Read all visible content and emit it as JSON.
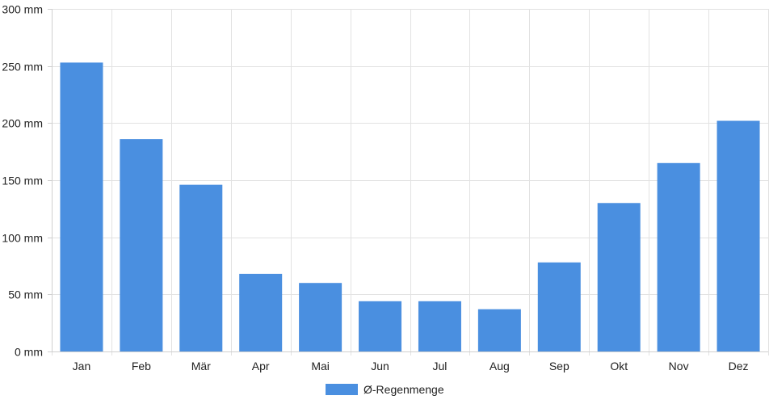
{
  "colors": {
    "bar": "#4a8fe0",
    "grid": "#e2e2e2",
    "axis": "#cfcfcf",
    "text": "#222222"
  },
  "legend": {
    "label": "Ø-Regenmenge"
  },
  "chart_data": {
    "type": "bar",
    "categories": [
      "Jan",
      "Feb",
      "Mär",
      "Apr",
      "Mai",
      "Jun",
      "Jul",
      "Aug",
      "Sep",
      "Okt",
      "Nov",
      "Dez"
    ],
    "series": [
      {
        "name": "Ø-Regenmenge",
        "values": [
          253,
          186,
          146,
          68,
          60,
          44,
          44,
          37,
          78,
          130,
          165,
          202
        ]
      }
    ],
    "ylim": [
      0,
      300
    ],
    "y_ticks": [
      0,
      50,
      100,
      150,
      200,
      250,
      300
    ],
    "y_tick_suffix": " mm",
    "grid": true,
    "legend_position": "bottom"
  }
}
